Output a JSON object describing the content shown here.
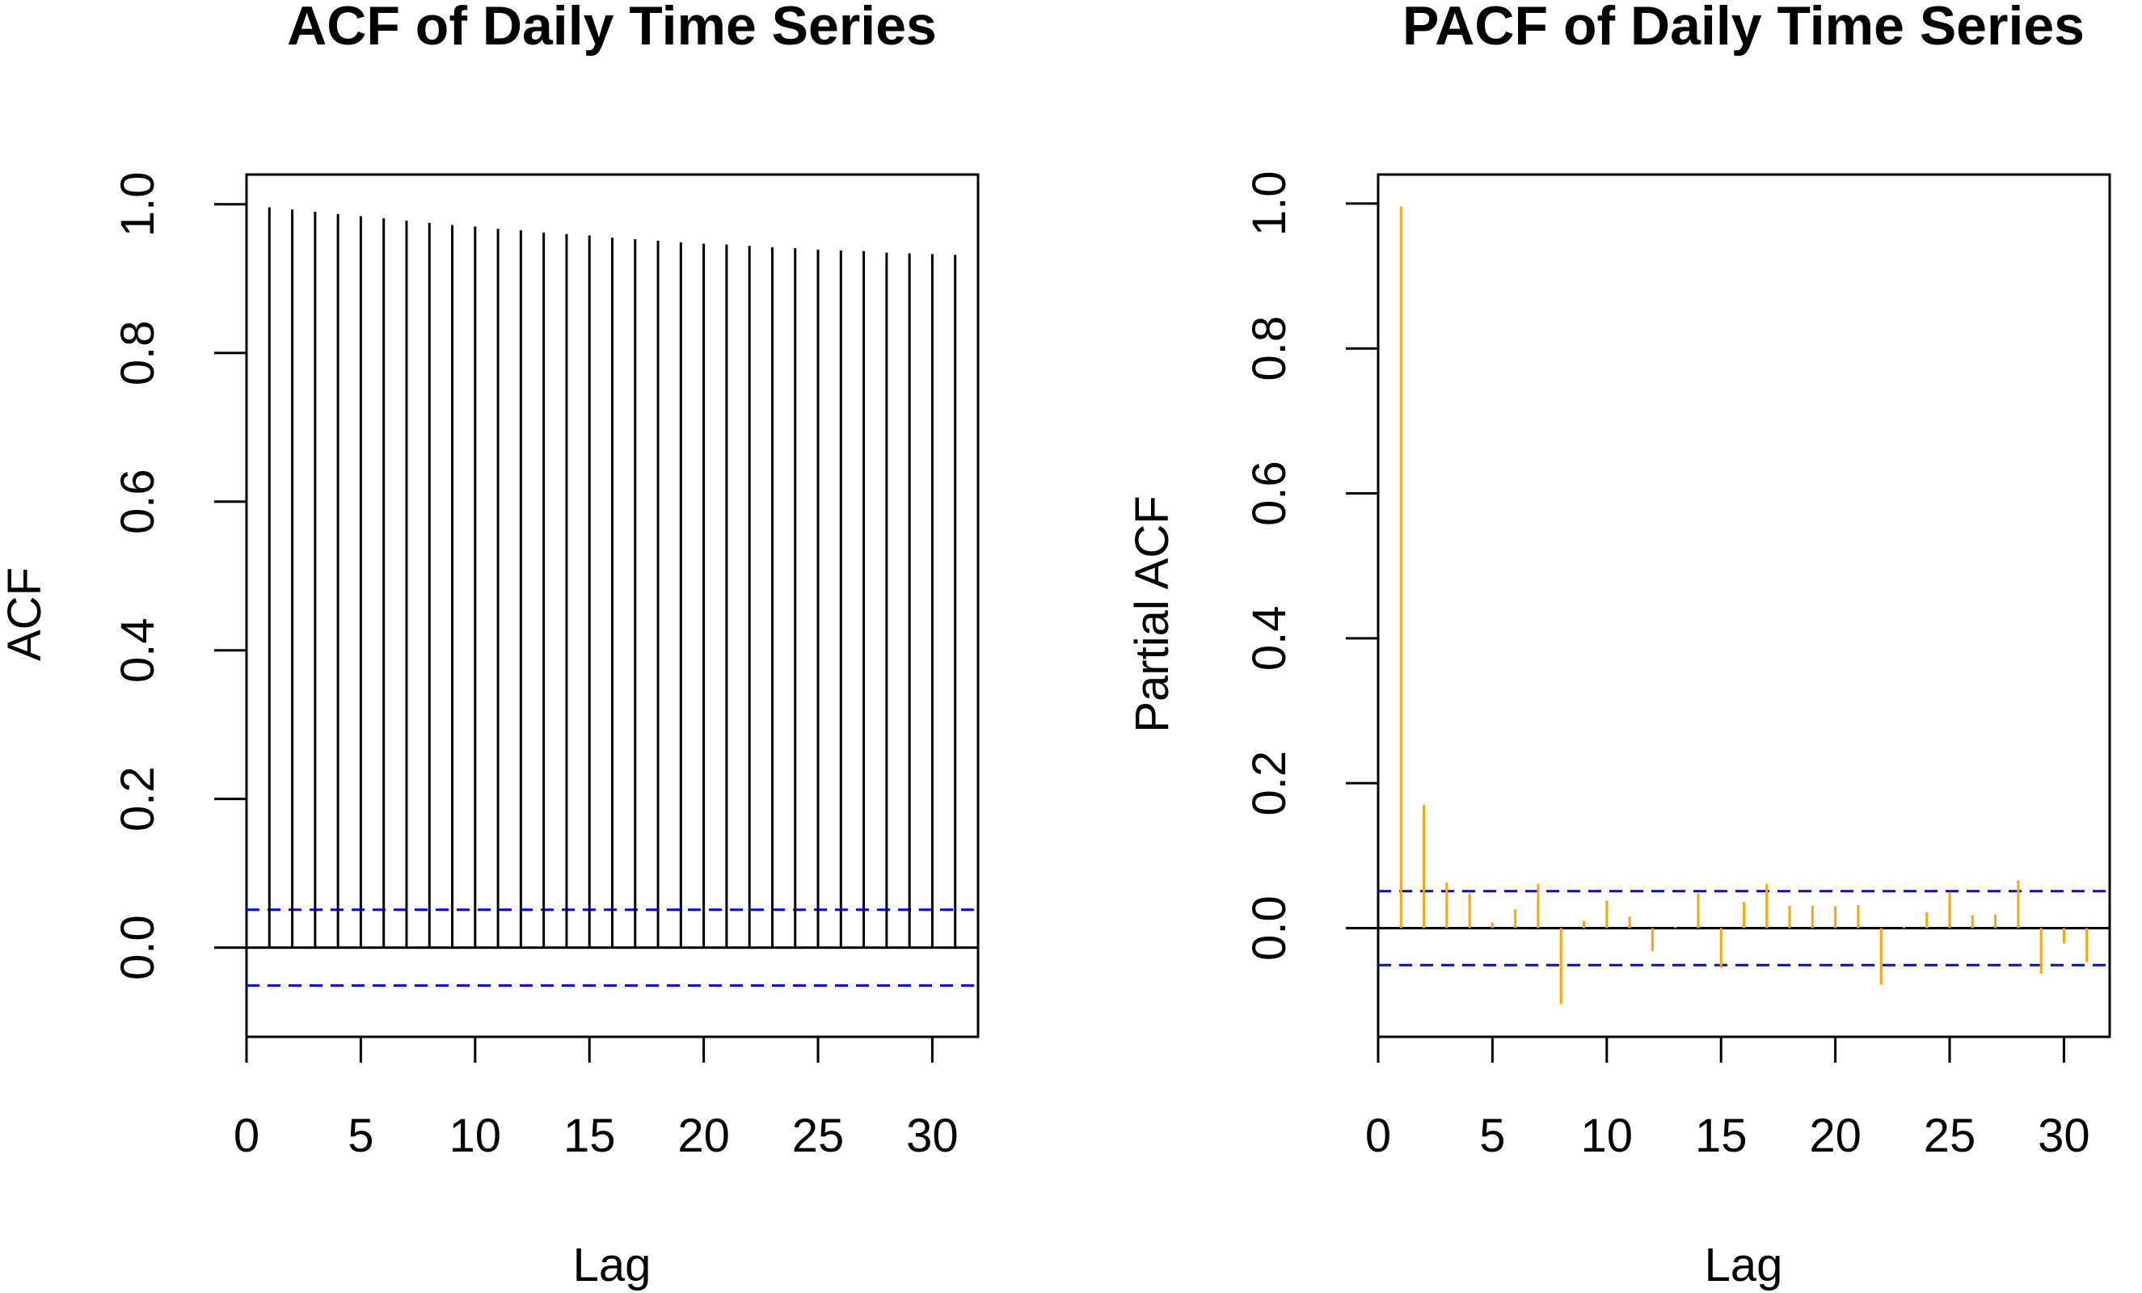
{
  "chart_data": [
    {
      "type": "bar",
      "title": "ACF of Daily Time Series",
      "xlabel": "Lag",
      "ylabel": "ACF",
      "xlim": [
        0,
        32
      ],
      "ylim": [
        -0.12,
        1.04
      ],
      "x_ticks": [
        "0",
        "5",
        "10",
        "15",
        "20",
        "25",
        "30"
      ],
      "y_ticks": [
        "0.0",
        "0.2",
        "0.4",
        "0.6",
        "0.8",
        "1.0"
      ],
      "grid": false,
      "series": [
        {
          "lags": [
            1,
            2,
            3,
            4,
            5,
            6,
            7,
            8,
            9,
            10,
            11,
            12,
            13,
            14,
            15,
            16,
            17,
            18,
            19,
            20,
            21,
            22,
            23,
            24,
            25,
            26,
            27,
            28,
            29,
            30,
            31
          ],
          "values": [
            0.996,
            0.993,
            0.99,
            0.987,
            0.984,
            0.981,
            0.978,
            0.975,
            0.972,
            0.97,
            0.967,
            0.965,
            0.962,
            0.96,
            0.958,
            0.955,
            0.953,
            0.951,
            0.949,
            0.947,
            0.946,
            0.944,
            0.942,
            0.941,
            0.939,
            0.938,
            0.937,
            0.935,
            0.934,
            0.933,
            0.932
          ],
          "color": "#000000"
        }
      ],
      "confidence_bounds": [
        0.051,
        -0.051
      ],
      "confidence_color": "#0000ff"
    },
    {
      "type": "bar",
      "title": "PACF of Daily Time Series",
      "xlabel": "Lag",
      "ylabel": "Partial ACF",
      "xlim": [
        0,
        32
      ],
      "ylim": [
        -0.15,
        1.04
      ],
      "x_ticks": [
        "0",
        "5",
        "10",
        "15",
        "20",
        "25",
        "30"
      ],
      "y_ticks": [
        "0.0",
        "0.2",
        "0.4",
        "0.6",
        "0.8",
        "1.0"
      ],
      "grid": false,
      "series": [
        {
          "lags": [
            1,
            2,
            3,
            4,
            5,
            6,
            7,
            8,
            9,
            10,
            11,
            12,
            13,
            14,
            15,
            16,
            17,
            18,
            19,
            20,
            21,
            22,
            23,
            24,
            25,
            26,
            27,
            28,
            29,
            30,
            31
          ],
          "values": [
            0.996,
            0.17,
            0.063,
            0.048,
            0.008,
            0.026,
            0.061,
            -0.105,
            0.01,
            0.038,
            0.016,
            -0.032,
            0.002,
            0.048,
            -0.055,
            0.036,
            0.061,
            0.031,
            0.031,
            0.03,
            0.032,
            -0.078,
            0.002,
            0.022,
            0.05,
            0.018,
            0.019,
            0.066,
            -0.063,
            -0.021,
            -0.047
          ],
          "color": "#ffa500"
        }
      ],
      "confidence_bounds": [
        0.051,
        -0.051
      ],
      "confidence_color": "#0000ff"
    }
  ]
}
